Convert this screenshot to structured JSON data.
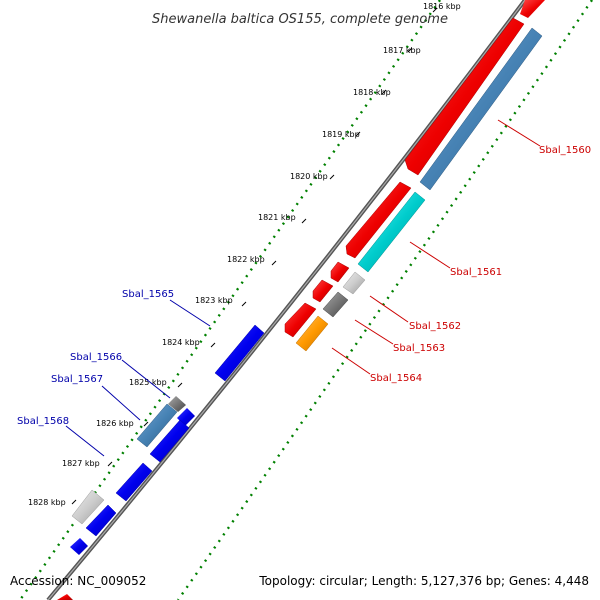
{
  "title": "Shewanella baltica OS155, complete genome",
  "footer": {
    "accession": "Accession: NC_009052",
    "topology": "Topology: circular; Length: 5,127,376 bp; Genes: 4,448"
  },
  "kbp_ticks": [
    "1816 kbp",
    "1817 kbp",
    "1818 kbp",
    "1819 kbp",
    "1820 kbp",
    "1821 kbp",
    "1822 kbp",
    "1823 kbp",
    "1824 kbp",
    "1825 kbp",
    "1826 kbp",
    "1827 kbp",
    "1828 kbp"
  ],
  "gene_labels_right": [
    "Sbal_1560",
    "Sbal_1561",
    "Sbal_1562",
    "Sbal_1563",
    "Sbal_1564"
  ],
  "gene_labels_left": [
    "Sbal_1565",
    "Sbal_1566",
    "Sbal_1567",
    "Sbal_1568"
  ],
  "colors": {
    "forward_gene": "#ee0000",
    "reverse_gene": "#0000ee",
    "steelblue": "#4682b4",
    "cyan": "#00cccc",
    "orange": "#ff9900",
    "gray": "#777777",
    "lightgray": "#cccccc",
    "backbone": "#888888",
    "dots": "#008000"
  }
}
